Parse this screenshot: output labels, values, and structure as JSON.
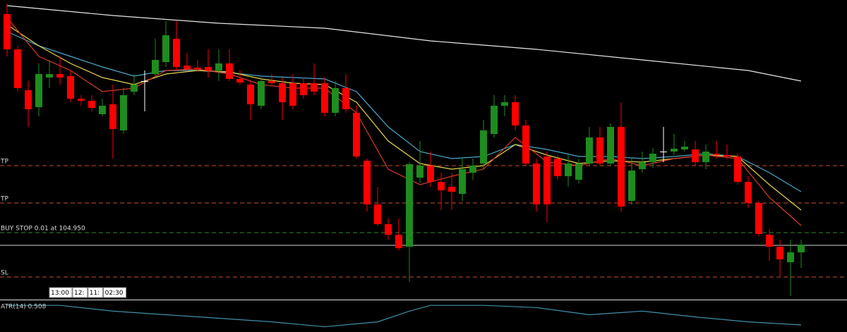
{
  "chart_data": {
    "type": "candlestick",
    "up_color": "#1e8c1e",
    "down_color": "#ff0000",
    "doji_color": "#ffffff",
    "ylim": [
      104.0,
      108.25
    ],
    "open": [
      108.05,
      107.55,
      106.97,
      106.73,
      107.15,
      107.2,
      107.17,
      106.85,
      106.82,
      106.63,
      106.77,
      106.4,
      106.95,
      107.1,
      107.2,
      107.37,
      107.7,
      107.32,
      107.29,
      107.3,
      107.25,
      107.35,
      107.13,
      107.05,
      106.75,
      107.1,
      107.07,
      107.07,
      107.07,
      107.07,
      107.07,
      106.65,
      107.0,
      106.65,
      105.97,
      105.35,
      105.07,
      104.92,
      104.75,
      105.73,
      105.9,
      105.67,
      105.6,
      105.5,
      105.8,
      105.93,
      106.35,
      106.75,
      106.8,
      106.47,
      105.93,
      106.03,
      106.0,
      105.75,
      105.7,
      105.93,
      106.3,
      105.93,
      106.45,
      105.4,
      105.85,
      105.95,
      106.1,
      106.1,
      106.13,
      106.13,
      105.95,
      106.07,
      106.05,
      106.03,
      105.67,
      105.37,
      104.92,
      104.75,
      104.53,
      104.67
    ],
    "high": [
      108.2,
      107.6,
      107.1,
      107.35,
      107.4,
      107.45,
      107.25,
      106.9,
      106.9,
      106.85,
      107.05,
      107.0,
      107.2,
      107.25,
      107.7,
      107.95,
      107.95,
      107.5,
      107.4,
      107.55,
      107.55,
      107.55,
      107.25,
      107.1,
      107.15,
      107.2,
      107.15,
      107.2,
      107.15,
      107.35,
      107.15,
      107.1,
      107.2,
      106.75,
      106.0,
      105.6,
      105.15,
      105.15,
      105.95,
      106.25,
      106.1,
      105.8,
      105.8,
      106.0,
      106.0,
      106.55,
      106.9,
      106.9,
      106.9,
      106.55,
      106.0,
      106.1,
      106.05,
      106.05,
      106.0,
      106.45,
      106.45,
      106.5,
      106.8,
      106.0,
      106.1,
      106.15,
      106.45,
      106.35,
      106.25,
      106.25,
      106.2,
      106.25,
      106.2,
      106.07,
      105.75,
      105.4,
      105.0,
      104.85,
      104.85,
      104.85
    ],
    "low": [
      107.45,
      106.95,
      106.45,
      106.6,
      107.0,
      107.05,
      106.8,
      106.75,
      106.67,
      106.6,
      106.0,
      106.35,
      106.9,
      106.67,
      107.15,
      107.3,
      107.25,
      107.25,
      107.23,
      107.15,
      107.1,
      107.1,
      107.05,
      106.55,
      106.7,
      107.05,
      106.55,
      106.7,
      106.85,
      106.9,
      106.6,
      106.6,
      106.65,
      106.0,
      105.25,
      105.05,
      104.85,
      104.7,
      104.25,
      105.65,
      105.6,
      105.27,
      105.27,
      105.4,
      105.7,
      105.85,
      106.3,
      106.6,
      106.4,
      105.9,
      105.25,
      105.1,
      105.7,
      105.6,
      105.65,
      105.9,
      105.9,
      105.9,
      105.25,
      105.35,
      105.8,
      105.87,
      105.95,
      106.05,
      106.1,
      105.9,
      105.85,
      106.0,
      106.0,
      105.63,
      105.3,
      104.9,
      104.55,
      104.33,
      104.05,
      104.45
    ],
    "close": [
      107.55,
      107.0,
      106.7,
      107.2,
      107.2,
      107.15,
      106.85,
      106.82,
      106.72,
      106.75,
      106.42,
      106.9,
      107.05,
      107.1,
      107.4,
      107.75,
      107.3,
      107.27,
      107.27,
      107.25,
      107.35,
      107.13,
      107.08,
      106.77,
      107.1,
      107.07,
      106.8,
      106.75,
      106.9,
      106.95,
      106.65,
      107.0,
      106.7,
      106.03,
      105.35,
      105.07,
      104.92,
      104.73,
      105.92,
      105.9,
      105.67,
      105.55,
      105.53,
      105.85,
      105.9,
      106.4,
      106.75,
      106.8,
      106.47,
      105.93,
      105.35,
      105.35,
      105.75,
      105.93,
      105.93,
      106.3,
      105.93,
      106.45,
      105.32,
      105.83,
      105.95,
      106.07,
      106.1,
      106.14,
      106.17,
      105.95,
      106.1,
      106.05,
      106.03,
      105.67,
      105.37,
      104.93,
      104.75,
      104.57,
      104.67,
      104.78
    ],
    "overlays": [
      {
        "color": "#e6e6e6",
        "x": [
          0,
          10,
          20,
          30,
          40,
          50,
          60,
          70,
          75
        ],
        "values": [
          108.17,
          108.03,
          107.92,
          107.85,
          107.67,
          107.55,
          107.4,
          107.25,
          107.1
        ]
      },
      {
        "color": "#4aa8c8",
        "x": [
          0,
          3,
          6,
          9,
          12,
          15,
          18,
          21,
          24,
          27,
          30,
          33,
          36,
          39,
          42,
          45,
          48,
          51,
          54,
          57,
          60,
          63,
          66,
          69,
          72,
          75
        ],
        "values": [
          107.8,
          107.6,
          107.45,
          107.3,
          107.17,
          107.25,
          107.25,
          107.22,
          107.17,
          107.15,
          107.13,
          106.95,
          106.45,
          106.1,
          106.0,
          106.03,
          106.2,
          106.13,
          106.03,
          106.03,
          106.0,
          106.03,
          106.07,
          106.03,
          105.8,
          105.53
        ]
      },
      {
        "color": "#e8d44a",
        "x": [
          0,
          3,
          6,
          9,
          12,
          15,
          18,
          21,
          24,
          27,
          30,
          33,
          36,
          39,
          42,
          45,
          48,
          51,
          54,
          57,
          60,
          63,
          66,
          69,
          72,
          75
        ],
        "values": [
          107.9,
          107.6,
          107.35,
          107.15,
          107.05,
          107.2,
          107.25,
          107.23,
          107.13,
          107.07,
          107.05,
          106.8,
          106.25,
          105.93,
          105.85,
          105.9,
          106.2,
          106.05,
          105.93,
          105.97,
          105.95,
          106.0,
          106.05,
          106.03,
          105.63,
          105.27
        ]
      },
      {
        "color": "#d93a2a",
        "x": [
          0,
          3,
          6,
          9,
          12,
          15,
          18,
          21,
          24,
          27,
          30,
          33,
          36,
          39,
          42,
          45,
          48,
          51,
          54,
          57,
          60,
          63,
          66,
          69,
          72,
          75
        ],
        "values": [
          108.0,
          107.45,
          107.25,
          106.95,
          107.0,
          107.25,
          107.27,
          107.2,
          107.05,
          107.0,
          107.0,
          106.65,
          105.85,
          105.63,
          105.75,
          105.85,
          106.3,
          105.95,
          105.9,
          106.0,
          105.9,
          106.0,
          106.05,
          106.0,
          105.45,
          105.05
        ]
      }
    ],
    "levels": [
      {
        "label": "TP",
        "value": 105.9,
        "color": "#c8502a",
        "dashed": true
      },
      {
        "label": "TP",
        "value": 105.37,
        "color": "#c8502a",
        "dashed": true
      },
      {
        "label": "BUY STOP 0.01 at 104.950",
        "value": 104.95,
        "color": "#2e8b2e",
        "dashed": true
      },
      {
        "value": 104.77,
        "color": "#cfcfcf",
        "dashed": false
      },
      {
        "label": "SL",
        "value": 104.32,
        "color": "#c8502a",
        "dashed": true
      }
    ],
    "time_labels": [
      "13:00",
      "12:",
      "11:",
      "02:30"
    ],
    "indicator": {
      "label": "ATR(14) 0.508",
      "color": "#3f8fa8",
      "ylim": [
        0.4,
        1.0
      ],
      "x": [
        0,
        5,
        10,
        15,
        20,
        25,
        30,
        35,
        38,
        40,
        45,
        50,
        55,
        60,
        65,
        70,
        75
      ],
      "values": [
        0.95,
        0.95,
        0.82,
        0.74,
        0.66,
        0.58,
        0.47,
        0.58,
        0.82,
        0.95,
        0.95,
        0.9,
        0.74,
        0.82,
        0.69,
        0.58,
        0.51
      ]
    }
  }
}
